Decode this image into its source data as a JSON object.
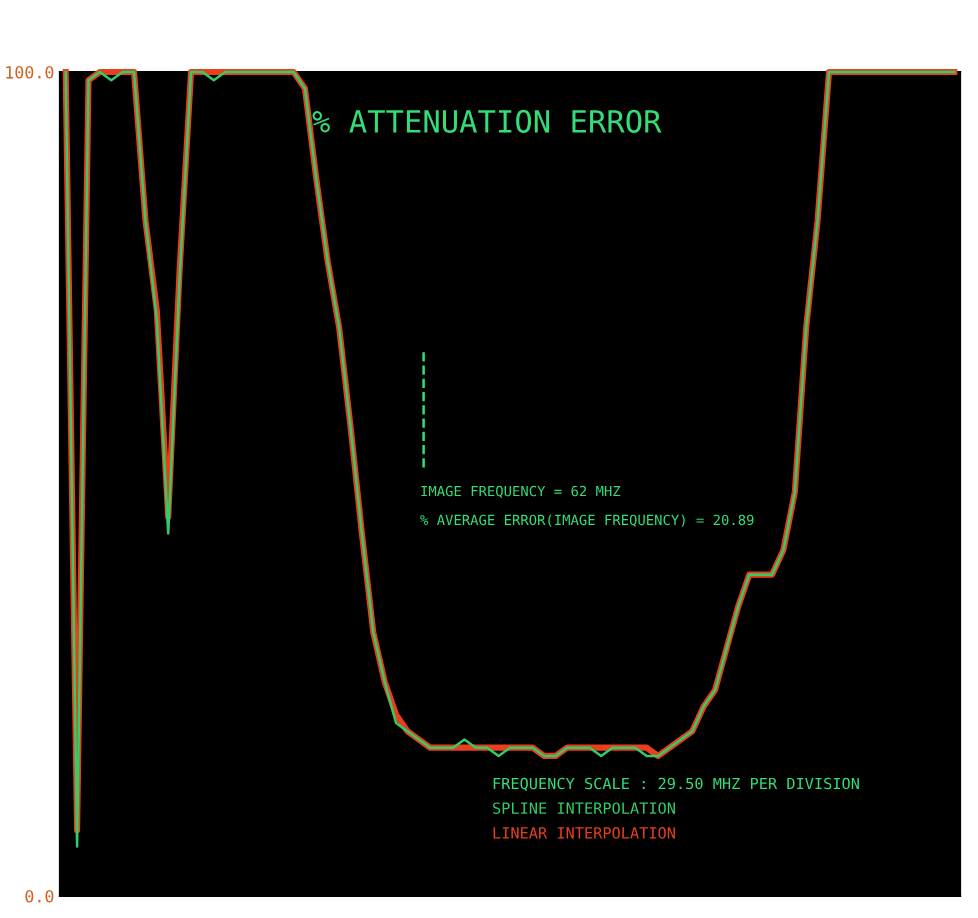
{
  "chart_data": {
    "type": "line",
    "title": "% ATTENUATION ERROR",
    "categories": [
      null,
      null,
      null,
      null,
      null,
      null,
      null,
      null,
      null,
      null,
      null,
      null,
      null,
      null,
      null,
      null,
      null,
      null,
      null,
      null,
      null,
      null,
      null,
      null,
      null,
      null,
      null,
      null,
      null,
      null,
      null,
      null,
      null,
      null,
      null,
      null,
      null,
      null,
      null,
      null,
      null,
      null,
      null,
      null,
      null,
      null,
      null,
      null,
      null,
      null,
      null,
      null,
      null,
      null,
      null,
      null,
      null,
      null,
      null,
      null,
      null,
      null,
      null,
      null,
      null,
      null,
      null,
      null,
      null,
      null,
      null,
      null,
      null,
      null,
      null,
      null,
      null,
      null,
      null
    ],
    "series": [
      {
        "name": "SPLINE INTERPOLATION",
        "color": "#33cc66",
        "values": [
          100,
          6,
          99,
          100,
          99,
          100,
          100,
          82,
          70,
          44,
          75,
          100,
          100,
          99,
          100,
          100,
          100,
          100,
          100,
          100,
          100,
          98,
          87,
          77,
          69,
          57,
          44,
          32,
          26,
          21,
          20,
          19,
          18,
          18,
          18,
          19,
          18,
          18,
          17,
          18,
          18,
          18,
          17,
          17,
          18,
          18,
          18,
          17,
          18,
          18,
          18,
          17,
          17,
          18,
          19,
          20,
          23,
          25,
          30,
          35,
          39,
          39,
          39,
          42,
          49,
          69,
          82,
          100,
          100,
          100,
          100,
          100,
          100,
          100,
          100,
          100,
          100,
          100,
          100
        ]
      },
      {
        "name": "LINEAR INTERPOLATION",
        "color": "#e8401c",
        "values": [
          100,
          8,
          99,
          100,
          100,
          100,
          100,
          82,
          71,
          46,
          76,
          100,
          100,
          100,
          100,
          100,
          100,
          100,
          100,
          100,
          100,
          98,
          87,
          77,
          69,
          57,
          44,
          32,
          26,
          22,
          20,
          19,
          18,
          18,
          18,
          18,
          18,
          18,
          18,
          18,
          18,
          18,
          17,
          17,
          18,
          18,
          18,
          18,
          18,
          18,
          18,
          18,
          17,
          18,
          19,
          20,
          23,
          25,
          30,
          35,
          39,
          39,
          39,
          42,
          49,
          69,
          82,
          100,
          100,
          100,
          100,
          100,
          100,
          100,
          100,
          100,
          100,
          100,
          100
        ]
      }
    ],
    "ylim": [
      0,
      100
    ],
    "yticks": [
      {
        "value": 0,
        "label": "0.0"
      },
      {
        "value": 100,
        "label": "100.0"
      }
    ],
    "annotations": [
      "IMAGE FREQUENCY = 62 MHZ",
      "% AVERAGE ERROR(IMAGE FREQUENCY) = 20.89",
      "FREQUENCY SCALE : 29.50 MHZ PER DIVISION"
    ],
    "legend": false,
    "line_style": "solid",
    "marker": "none"
  }
}
